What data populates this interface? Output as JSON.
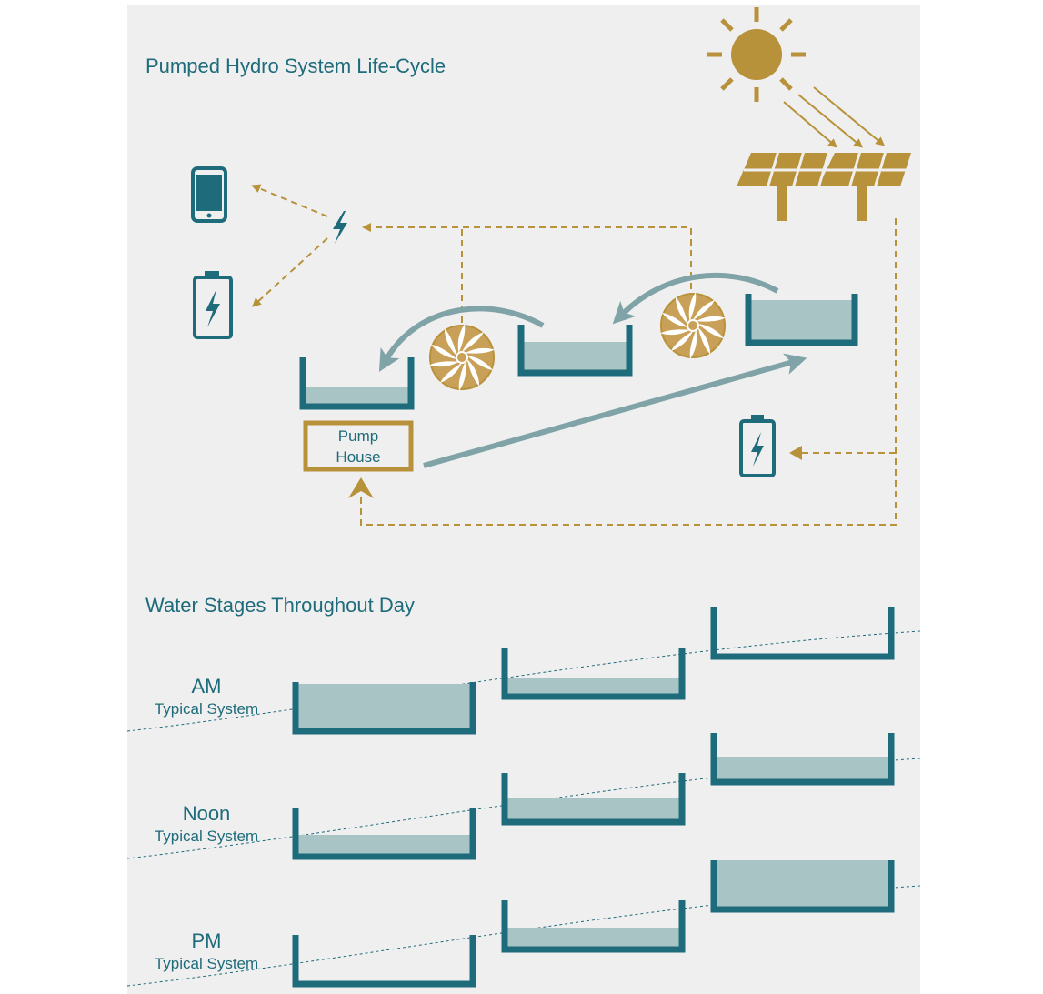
{
  "diagram": {
    "title": "Pumped Hydro System Life-Cycle",
    "pump_house": {
      "lines": [
        "Pump",
        "House"
      ]
    },
    "stages_title": "Water Stages Throughout Day",
    "stages": [
      {
        "label": "AM",
        "caption": "Typical System"
      },
      {
        "label": "Noon",
        "caption": "Typical System"
      },
      {
        "label": "PM",
        "caption": "Typical System"
      }
    ]
  }
}
